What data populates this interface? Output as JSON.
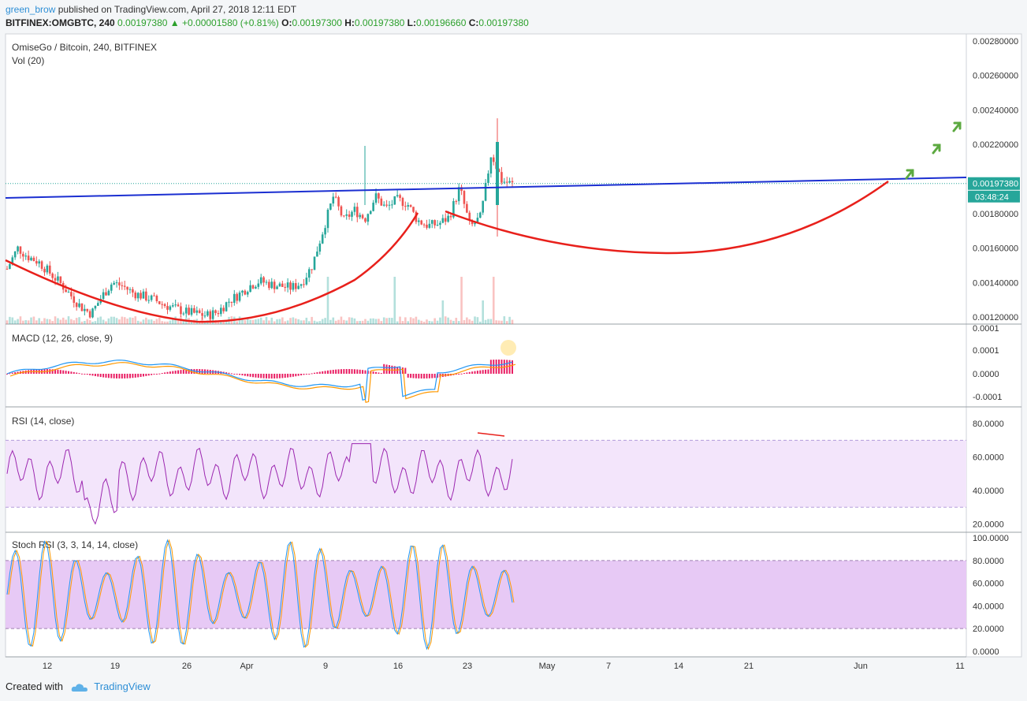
{
  "header": {
    "user": "green_brow",
    "published": "published on TradingView.com, April 27, 2018 12:11 EDT",
    "symbol": "BITFINEX:OMGBTC, 240",
    "last": "0.00197380",
    "change": "+0.00001580 (+0.81%)",
    "o_label": "O:",
    "o": "0.00197300",
    "h_label": "H:",
    "h": "0.00197380",
    "l_label": "L:",
    "l": "0.00196660",
    "c_label": "C:",
    "c": "0.00197380"
  },
  "footer": {
    "created": "Created with",
    "brand": "TradingView"
  },
  "colors": {
    "up": "#26a69a",
    "down": "#ef5350",
    "blue_line": "#1b2fd1",
    "curve": "#e8201b",
    "arrow": "#5ca940",
    "macd": "#2196f3",
    "signal": "#ff9800",
    "hist": "#e91e63",
    "rsi": "#9c27b0",
    "band": "#e1bee7"
  },
  "chart_data": [
    {
      "type": "candlestick",
      "title": "OmiseGo / Bitcoin, 240, BITFINEX",
      "subtitle": "Vol (20)",
      "ylim": [
        0.00116,
        0.00284
      ],
      "y_ticks": [
        "0.00280000",
        "0.00260000",
        "0.00240000",
        "0.00220000",
        "0.00180000",
        "0.00160000",
        "0.00140000",
        "0.00120000"
      ],
      "x_ticks": [
        "12",
        "19",
        "26",
        "Apr",
        "9",
        "16",
        "23",
        "May",
        "7",
        "14",
        "21",
        "Jun",
        "11"
      ],
      "last_price_label": "0.00197380",
      "countdown_label": "03:48:24",
      "close_path": [
        0.00148,
        0.0016,
        0.00155,
        0.00152,
        0.00146,
        0.0014,
        0.00133,
        0.00126,
        0.00122,
        0.00132,
        0.0014,
        0.00138,
        0.00134,
        0.00132,
        0.0013,
        0.00127,
        0.00125,
        0.00123,
        0.00122,
        0.00121,
        0.00123,
        0.00129,
        0.00133,
        0.00138,
        0.00141,
        0.00139,
        0.00138,
        0.00137,
        0.0014,
        0.0015,
        0.0017,
        0.0019,
        0.00176,
        0.00182,
        0.00177,
        0.0019,
        0.00183,
        0.00188,
        0.00186,
        0.00176,
        0.00173,
        0.00174,
        0.00178,
        0.00195,
        0.00172,
        0.00178,
        0.00215,
        0.00199,
        0.00197
      ],
      "annotations": [
        "blue trendline",
        "red cup curves",
        "green up arrows"
      ]
    },
    {
      "type": "line",
      "title": "MACD (12, 26, close, 9)",
      "y_ticks": [
        "0.0001",
        "0.0001",
        "0.0000",
        "-0.0001"
      ],
      "series": [
        {
          "name": "MACD"
        },
        {
          "name": "Signal"
        },
        {
          "name": "Histogram"
        }
      ]
    },
    {
      "type": "line",
      "title": "RSI (14, close)",
      "y_ticks": [
        "80.0000",
        "60.0000",
        "40.0000",
        "20.0000"
      ],
      "band": [
        30,
        70
      ],
      "ylim": [
        15,
        90
      ]
    },
    {
      "type": "line",
      "title": "Stoch RSI (3, 3, 14, 14, close)",
      "y_ticks": [
        "100.0000",
        "80.0000",
        "60.0000",
        "40.0000",
        "20.0000",
        "0.0000"
      ],
      "band": [
        20,
        80
      ],
      "ylim": [
        -5,
        105
      ]
    }
  ]
}
